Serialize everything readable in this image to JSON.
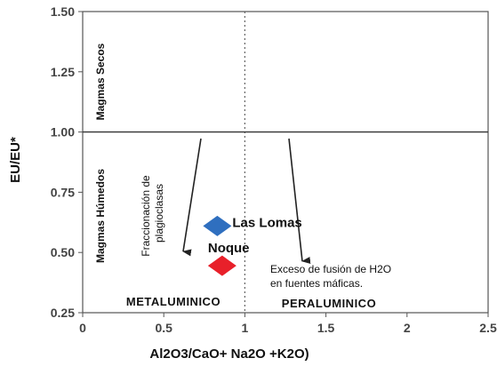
{
  "chart_data": {
    "type": "scatter",
    "xlabel": "Al2O3/CaO+ Na2O +K2O)",
    "ylabel": "EU/EU*",
    "xlim": [
      0,
      2.5
    ],
    "ylim": [
      0.25,
      1.5
    ],
    "xticks": [
      "0",
      "0.5",
      "1",
      "1.5",
      "2",
      "2.5"
    ],
    "yticks": [
      "0.25",
      "0.50",
      "0.75",
      "1.00",
      "1.25",
      "1.50"
    ],
    "points": [
      {
        "name": "Las Lomas",
        "x": 0.83,
        "y": 0.61,
        "color": "#2f6fbf",
        "marker": "diamond"
      },
      {
        "name": "Noque",
        "x": 0.86,
        "y": 0.445,
        "color": "#e8202a",
        "marker": "diamond"
      }
    ],
    "reference_lines": {
      "vertical_x": 1.0,
      "horizontal_y": 1.0
    },
    "zones": {
      "upper": "Magmas Secos",
      "lower": "Magmas Húmedos",
      "left": "METALUMINICO",
      "right": "PERALUMINICO"
    },
    "annotations": {
      "plagioclase": [
        "Fraccionación de",
        "plagioclasas"
      ],
      "water": [
        "Exceso de fusión de H2O",
        "en fuentes máficas."
      ]
    },
    "grid": false
  }
}
